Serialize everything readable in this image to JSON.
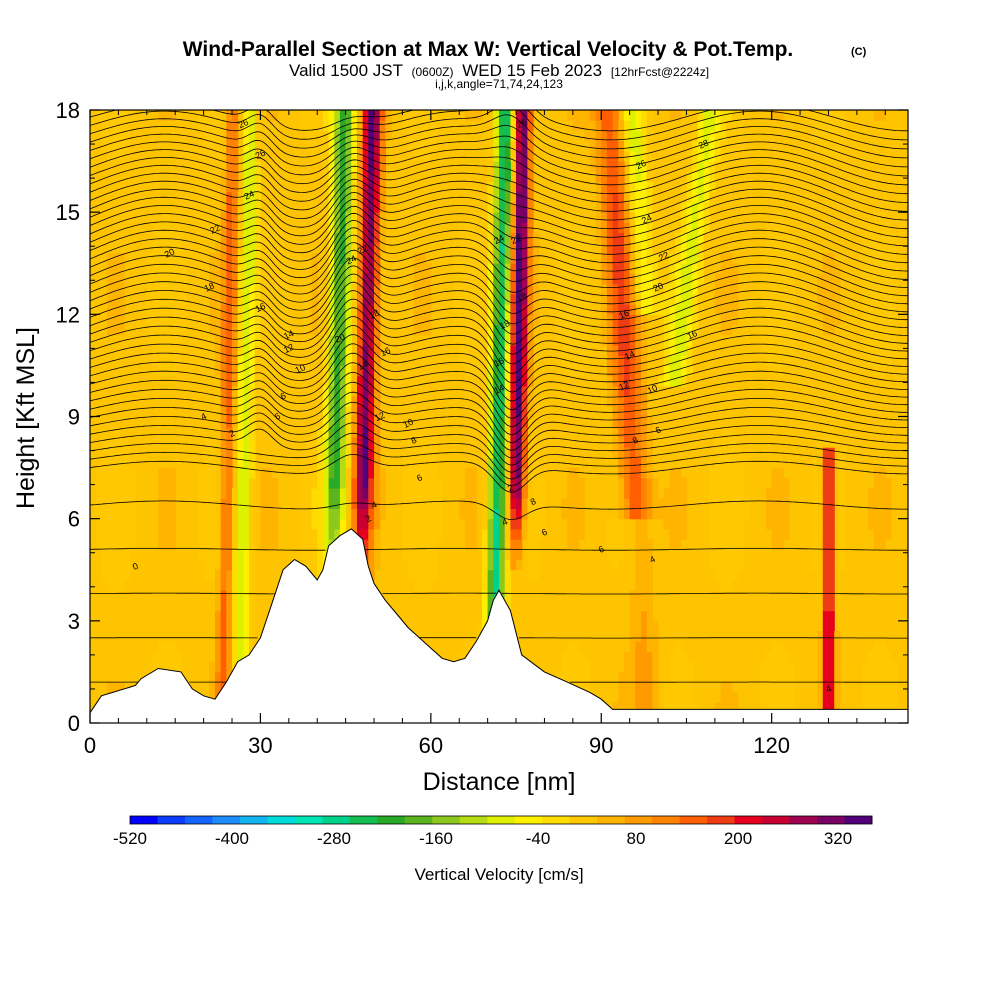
{
  "chart_data": {
    "type": "contour",
    "title": "Wind-Parallel Section at Max W: Vertical Velocity & Pot.Temp.",
    "title_mark": "(C)",
    "subtitle_valid": "Valid 1500 JST",
    "subtitle_utc": "(0600Z)",
    "subtitle_date": "WED 15 Feb 2023",
    "subtitle_fcst": "[12hrFcst@2224z]",
    "subtitle_params": "i,j,k,angle=71,74,24,123",
    "xlabel": "Distance [nm]",
    "ylabel": "Height [Kft MSL]",
    "xlim": [
      0,
      144
    ],
    "ylim": [
      0,
      18
    ],
    "x_ticks": [
      "0",
      "30",
      "60",
      "90",
      "120"
    ],
    "y_ticks": [
      "0",
      "3",
      "6",
      "9",
      "12",
      "15",
      "18"
    ],
    "colorbar": {
      "label": "Vertical Velocity [cm/s]",
      "tick_labels": [
        "-520",
        "-400",
        "-280",
        "-160",
        "-40",
        "80",
        "200",
        "320"
      ],
      "colors": [
        "#0000ff",
        "#0a3dff",
        "#1464ff",
        "#1e8cff",
        "#14b4f0",
        "#00dcdc",
        "#00e6b4",
        "#00d28c",
        "#14be50",
        "#28aa28",
        "#5ab41e",
        "#8cc81e",
        "#b4dc14",
        "#dcf000",
        "#fff000",
        "#ffdc00",
        "#ffc800",
        "#ffb400",
        "#ff9b00",
        "#ff8200",
        "#ff5f00",
        "#f03c14",
        "#e6001e",
        "#c80032",
        "#a00050",
        "#780064",
        "#500078"
      ]
    },
    "series": [
      {
        "name": "updraft-core-1",
        "x_center_nm": 48,
        "w_max_cms": 320
      },
      {
        "name": "updraft-core-2",
        "x_center_nm": 76,
        "w_max_cms": 320
      },
      {
        "name": "downdraft-core-1",
        "x_center_nm": 43,
        "w_min_cms": -220
      },
      {
        "name": "downdraft-core-2",
        "x_center_nm": 71,
        "w_min_cms": -300
      },
      {
        "name": "updraft-band-east",
        "x_center_nm": 96,
        "w_max_cms": 160
      },
      {
        "name": "updraft-band-far-east",
        "x_center_nm": 130,
        "w_max_cms": 240
      }
    ],
    "terrain": {
      "x": [
        0,
        2,
        4,
        8,
        9,
        12,
        16,
        18,
        20,
        22,
        24,
        26,
        28,
        30,
        32,
        34,
        36,
        38,
        40,
        41,
        42,
        44,
        46,
        48,
        49,
        50,
        52,
        54,
        56,
        58,
        60,
        62,
        64,
        66,
        68,
        70,
        71,
        72,
        74,
        76,
        80,
        84,
        88,
        90,
        92,
        110,
        130,
        144
      ],
      "height_kft": [
        0.3,
        0.8,
        0.9,
        1.1,
        1.3,
        1.6,
        1.5,
        1.0,
        0.8,
        0.7,
        1.2,
        1.8,
        2.0,
        2.5,
        3.5,
        4.5,
        4.8,
        4.6,
        4.2,
        4.5,
        5.2,
        5.5,
        5.7,
        5.4,
        4.6,
        4.1,
        3.6,
        3.2,
        2.8,
        2.5,
        2.2,
        1.9,
        1.8,
        1.9,
        2.4,
        3.0,
        3.6,
        3.9,
        3.3,
        2.0,
        1.5,
        1.2,
        0.9,
        0.7,
        0.4,
        0.4,
        0.4,
        0.4
      ]
    },
    "contours": {
      "variable": "potential temperature (2 K interval)",
      "labels": [
        "0",
        "2",
        "4",
        "6",
        "8",
        "10",
        "12",
        "14",
        "16",
        "18",
        "20",
        "22",
        "24",
        "26",
        "28"
      ]
    }
  }
}
